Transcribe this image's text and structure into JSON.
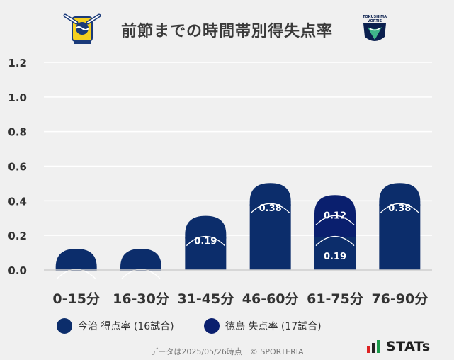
{
  "title": "前節までの時間帯別得失点率",
  "logos": {
    "left": {
      "name": "imabari-crest-logo",
      "alt": "今治"
    },
    "right": {
      "name": "tokushima-vortis-logo",
      "text_line1": "TOKUSHIMA",
      "text_line2": "VORTIS"
    }
  },
  "chart_data": {
    "type": "bar",
    "categories": [
      "0-15分",
      "16-30分",
      "31-45分",
      "46-60分",
      "61-75分",
      "76-90分"
    ],
    "series": [
      {
        "name": "今治 得点率 (16試合)",
        "values": [
          0.0,
          0.0,
          0.19,
          0.38,
          0.19,
          0.38
        ]
      },
      {
        "name": "徳島 失点率 (17試合)",
        "values": [
          0.0,
          0.0,
          0.0,
          0.0,
          0.12,
          0.0
        ]
      }
    ],
    "data_labels": [
      [
        null,
        null,
        "0.19",
        "0.38",
        "0.19",
        "0.38"
      ],
      [
        null,
        null,
        null,
        null,
        "0.12",
        null
      ]
    ],
    "y_ticks": [
      "0.0",
      "0.2",
      "0.4",
      "0.6",
      "0.8",
      "1.0",
      "1.2"
    ],
    "ylim": [
      0,
      1.2
    ],
    "grid": true,
    "legend_position": "bottom",
    "colors": {
      "series1": "#0c2d6b",
      "series2": "#0a1f6e",
      "background": "#f0f0f0",
      "grid": "#ffffff"
    }
  },
  "legend": [
    {
      "label": "今治 得点率 (16試合)",
      "color": "#0c2d6b"
    },
    {
      "label": "徳島 失点率 (17試合)",
      "color": "#0a1f6e"
    }
  ],
  "footer": "データは2025/05/26時点　© SPORTERIA",
  "brand": "STATs"
}
